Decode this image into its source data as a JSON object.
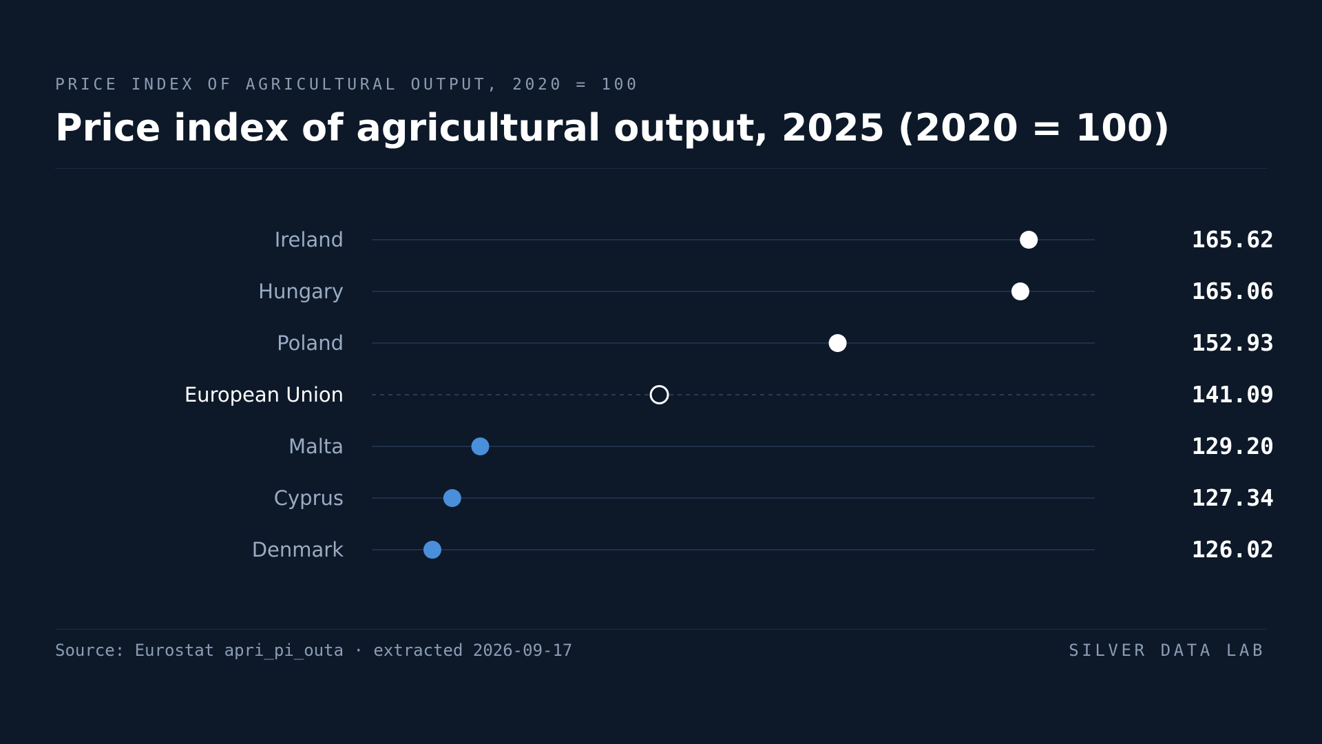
{
  "header": {
    "kicker": "PRICE INDEX OF AGRICULTURAL OUTPUT, 2020 = 100",
    "title": "Price index of agricultural output, 2025 (2020 = 100)"
  },
  "footer": {
    "source": "Source: Eurostat apri_pi_outa · extracted 2026-09-17",
    "brand": "SILVER DATA LAB"
  },
  "colors": {
    "background": "#0d1929",
    "track": "#1f3148",
    "label": "#9aabc3",
    "highlight_label": "#ffffff",
    "top_dot": "#ffffff",
    "bottom_dot": "#4a8fd9",
    "value_text": "#ffffff"
  },
  "chart_data": {
    "type": "dot",
    "title": "Price index of agricultural output, 2025 (2020 = 100)",
    "categories": [
      "Ireland",
      "Hungary",
      "Poland",
      "European Union",
      "Malta",
      "Cyprus",
      "Denmark"
    ],
    "values": [
      165.62,
      165.06,
      152.93,
      141.09,
      129.2,
      127.34,
      126.02
    ],
    "value_labels": [
      "165.62",
      "165.06",
      "152.93",
      "141.09",
      "129.20",
      "127.34",
      "126.02"
    ],
    "highlight": "European Union",
    "groups": [
      "top",
      "top",
      "top",
      "reference",
      "bottom",
      "bottom",
      "bottom"
    ],
    "xlim": [
      122,
      170
    ],
    "grid": false,
    "legend": "none"
  }
}
